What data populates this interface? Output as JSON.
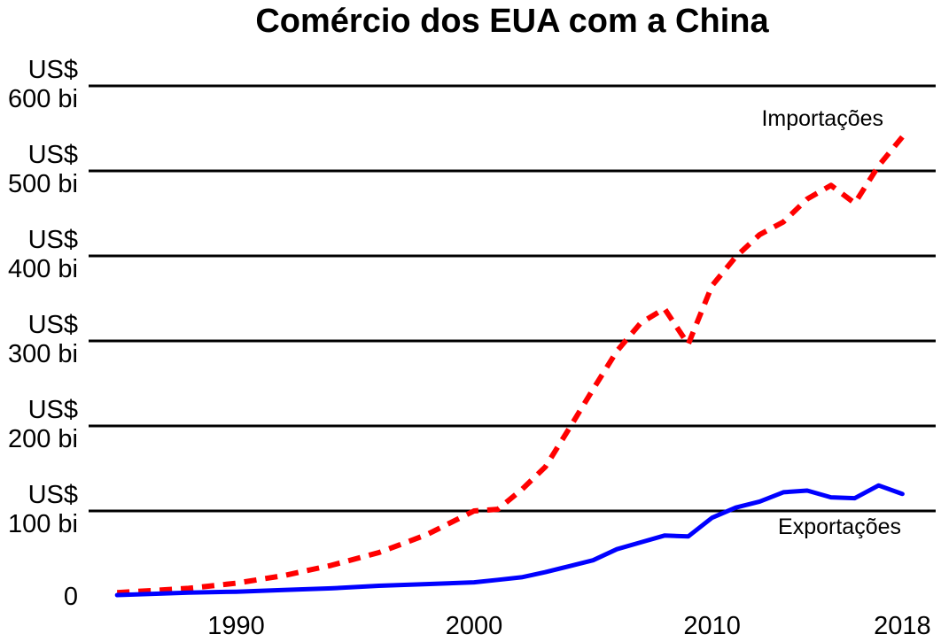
{
  "chart_data": {
    "type": "line",
    "title": "Comércio dos EUA com a China",
    "xlabel": "",
    "ylabel": "",
    "xlim": [
      1983.8,
      2019.4
    ],
    "ylim": [
      0,
      600
    ],
    "grid": true,
    "x_ticks": [
      {
        "value": 1990,
        "label": "1990"
      },
      {
        "value": 2000,
        "label": "2000"
      },
      {
        "value": 2010,
        "label": "2010"
      },
      {
        "value": 2018,
        "label": "2018"
      }
    ],
    "y_ticks": [
      {
        "value": 0,
        "lines": [
          "0"
        ]
      },
      {
        "value": 100,
        "lines": [
          "US$",
          "100 bi"
        ]
      },
      {
        "value": 200,
        "lines": [
          "US$",
          "200 bi"
        ]
      },
      {
        "value": 300,
        "lines": [
          "US$",
          "300 bi"
        ]
      },
      {
        "value": 400,
        "lines": [
          "US$",
          "400 bi"
        ]
      },
      {
        "value": 500,
        "lines": [
          "US$",
          "500 bi"
        ]
      },
      {
        "value": 600,
        "lines": [
          "US$",
          "600 bi"
        ]
      }
    ],
    "series": [
      {
        "name": "Importações",
        "color": "#ff0000",
        "style": "dashed",
        "x": [
          1985,
          1988,
          1990,
          1992,
          1994,
          1996,
          1998,
          2000,
          2001,
          2002,
          2003,
          2004,
          2005,
          2006,
          2007,
          2008,
          2009,
          2010,
          2011,
          2012,
          2013,
          2014,
          2015,
          2016,
          2017,
          2018
        ],
        "y": [
          4,
          9,
          15,
          24,
          36,
          51,
          72,
          100,
          102,
          125,
          152,
          197,
          243,
          288,
          321,
          338,
          296,
          365,
          399,
          425,
          440,
          467,
          483,
          462,
          506,
          540
        ]
      },
      {
        "name": "Exportações",
        "color": "#0000ff",
        "style": "solid",
        "x": [
          1985,
          1988,
          1990,
          1992,
          1994,
          1996,
          1998,
          2000,
          2001,
          2002,
          2003,
          2004,
          2005,
          2006,
          2007,
          2008,
          2009,
          2010,
          2011,
          2012,
          2013,
          2014,
          2015,
          2016,
          2017,
          2018
        ],
        "y": [
          1,
          4,
          5,
          7,
          9,
          12,
          14,
          16,
          19,
          22,
          28,
          35,
          42,
          55,
          63,
          71,
          70,
          92,
          104,
          111,
          122,
          124,
          116,
          115,
          130,
          120
        ]
      }
    ]
  }
}
